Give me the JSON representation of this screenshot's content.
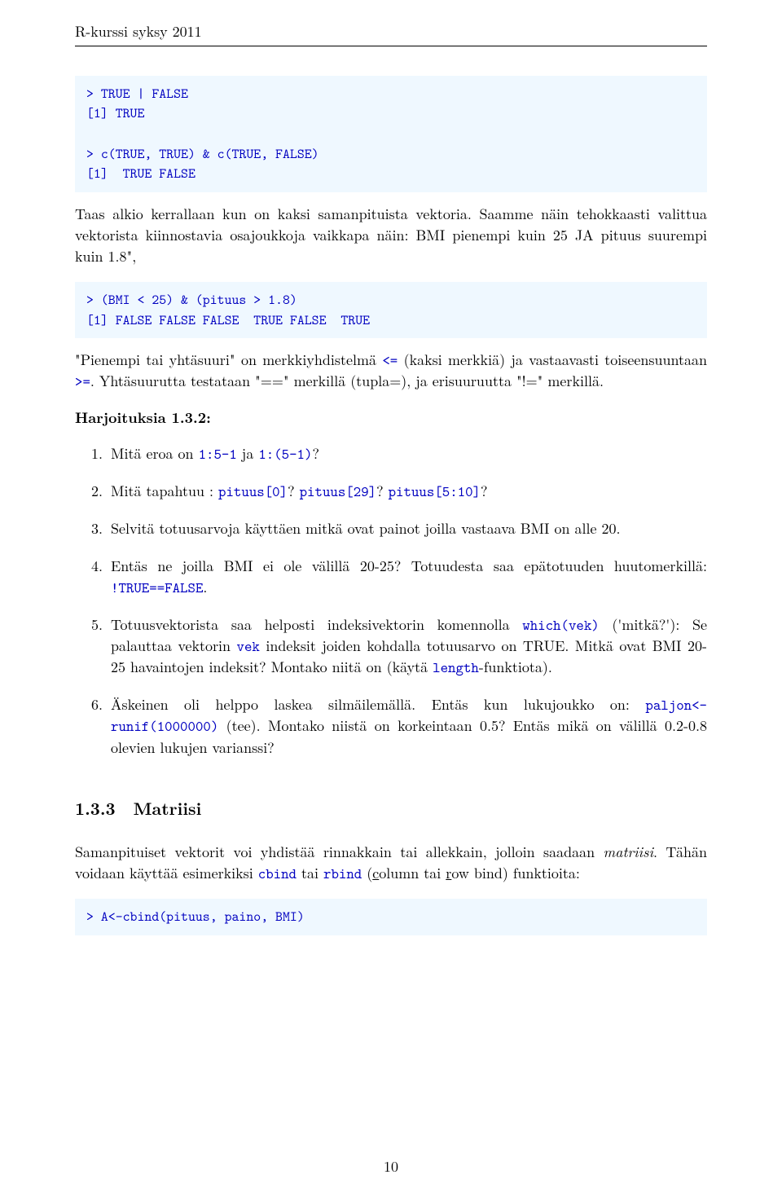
{
  "header": "R-kurssi syksy 2011",
  "code1": {
    "l1": "> TRUE | FALSE",
    "l2": "[1] TRUE",
    "l3": "",
    "l4": "> c(TRUE, TRUE) & c(TRUE, FALSE)",
    "l5": "[1]  TRUE FALSE"
  },
  "para1": {
    "t1": "Taas alkio kerrallaan kun on kaksi samanpituista vektoria.  Saamme näin tehokkaasti valittua vektorista kiinnostavia osajoukkoja vaikkapa näin: BMI pienempi kuin 25 JA pituus suurempi kuin 1.8\","
  },
  "code2": {
    "l1": "> (BMI < 25) & (pituus > 1.8)",
    "l2": "[1] FALSE FALSE FALSE  TRUE FALSE  TRUE"
  },
  "para2": {
    "t1": "\"Pienempi tai yhtäsuuri\" on merkkiyhdistelmä ",
    "c1": "<=",
    "t2": " (kaksi merkkiä) ja vastaavasti toiseensuuntaan ",
    "c2": ">=",
    "t3": ". Yhtäsuurutta testataan \"==\" merkillä (tupla=), ja erisuuruutta \"!=\" merkillä."
  },
  "ex_heading": "Harjoituksia 1.3.2:",
  "ex": {
    "i1": {
      "n": "1.",
      "a": "Mitä eroa on ",
      "c1": "1:5-1",
      "b": " ja ",
      "c2": "1:(5-1)",
      "c": "?"
    },
    "i2": {
      "n": "2.",
      "a": "Mitä tapahtuu : ",
      "c1": "pituus[0]",
      "b": "? ",
      "c2": "pituus[29]",
      "c": "? ",
      "c3": "pituus[5:10]",
      "d": "?"
    },
    "i3": {
      "n": "3.",
      "a": "Selvitä totuusarvoja käyttäen mitkä ovat painot joilla vastaava BMI on alle 20."
    },
    "i4": {
      "n": "4.",
      "a": "Entäs ne joilla BMI ei ole välillä 20-25? Totuudesta saa epätotuuden huutomerkillä: ",
      "c1": "!TRUE==FALSE",
      "b": "."
    },
    "i5": {
      "n": "5.",
      "a": "Totuusvektorista saa helposti indeksivektorin komennolla ",
      "c1": "which(vek)",
      "b": " ('mitkä?'): Se palauttaa vektorin ",
      "c2": "vek",
      "c": " indeksit joiden kohdalla totuusarvo on TRUE. Mitkä ovat BMI 20-25 havaintojen indeksit? Montako niitä on (käytä ",
      "c3": "length",
      "d": "-funktiota)."
    },
    "i6": {
      "n": "6.",
      "a": "Äskeinen oli helppo laskea silmäilemällä. Entäs kun lukujoukko on: ",
      "c1": "paljon<-runif(1000000)",
      "b": " (tee). Montako niistä on korkeintaan 0.5? Entäs mikä on välillä 0.2-0.8 olevien lukujen varianssi?"
    }
  },
  "section": {
    "num": "1.3.3",
    "title": "Matriisi"
  },
  "para3": {
    "t1": "Samanpituiset vektorit voi yhdistää rinnakkain tai allekkain, jolloin saadaan ",
    "it1": "matriisi",
    "t2": ". Tähän voidaan käyttää esimerkiksi ",
    "c1": "cbind",
    "t3": " tai ",
    "c2": "rbind",
    "t4": " (",
    "u1": "c",
    "t5": "olumn tai ",
    "u2": "r",
    "t6": "ow bind) funktioita:"
  },
  "code3": {
    "l1": "> A<-cbind(pituus, paino, BMI)"
  },
  "pagenum": "10",
  "colors": {
    "code_bg": "#eff8ff",
    "code_blue": "#0000c0",
    "text": "#000000",
    "bg": "#ffffff"
  },
  "fonts": {
    "body_size_pt": 18,
    "mono_size_pt": 17,
    "heading_size_pt": 21
  }
}
